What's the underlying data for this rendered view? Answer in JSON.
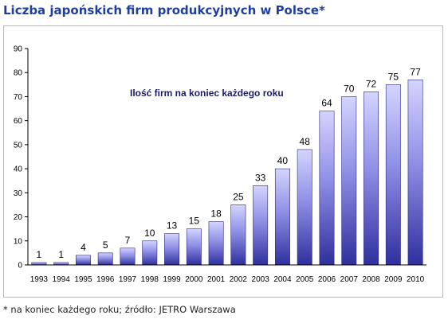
{
  "page_title": "Liczba japońskich firm produkcyjnych w Polsce*",
  "footnote": "* na koniec każdego roku; źródło: JETRO Warszawa",
  "chart_data": {
    "type": "bar",
    "annotation": "Ilość firm na koniec każdego roku",
    "categories": [
      "1993",
      "1994",
      "1995",
      "1996",
      "1997",
      "1998",
      "1999",
      "2000",
      "2001",
      "2002",
      "2003",
      "2004",
      "2005",
      "2006",
      "2007",
      "2008",
      "2009",
      "2010"
    ],
    "values": [
      1,
      1,
      4,
      5,
      7,
      10,
      13,
      15,
      18,
      25,
      33,
      40,
      48,
      64,
      70,
      72,
      75,
      77
    ],
    "ylim": [
      0,
      90
    ],
    "yticks": [
      0,
      10,
      20,
      30,
      40,
      50,
      60,
      70,
      80,
      90
    ],
    "grid": false,
    "colors": {
      "bar_top": "#c9c9ff",
      "bar_bottom": "#3b3bb0",
      "axis": "#000000"
    }
  }
}
